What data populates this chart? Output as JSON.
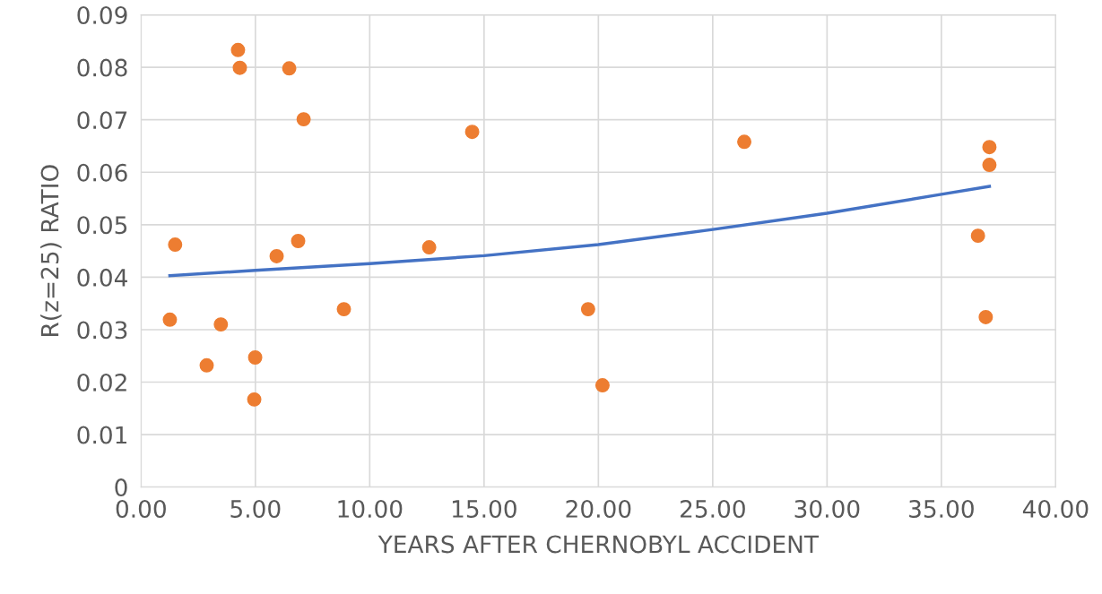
{
  "chart_data": {
    "type": "scatter",
    "xlabel": "YEARS AFTER CHERNOBYL ACCIDENT",
    "ylabel": "R(z=25) RATIO",
    "xlim": [
      0,
      40
    ],
    "ylim": [
      0,
      0.09
    ],
    "xticks": [
      {
        "value": 0,
        "label": "0.00"
      },
      {
        "value": 5,
        "label": "5.00"
      },
      {
        "value": 10,
        "label": "10.00"
      },
      {
        "value": 15,
        "label": "15.00"
      },
      {
        "value": 20,
        "label": "20.00"
      },
      {
        "value": 25,
        "label": "25.00"
      },
      {
        "value": 30,
        "label": "30.00"
      },
      {
        "value": 35,
        "label": "35.00"
      },
      {
        "value": 40,
        "label": "40.00"
      }
    ],
    "yticks": [
      0,
      0.01,
      0.02,
      0.03,
      0.04,
      0.05,
      0.06,
      0.07,
      0.08,
      0.09
    ],
    "grid": true,
    "marker": "circle",
    "series": [
      {
        "color": "#ed7d31",
        "x": [
          1.26,
          1.49,
          2.87,
          3.49,
          4.24,
          4.32,
          4.95,
          4.99,
          5.93,
          6.48,
          6.87,
          7.11,
          8.87,
          12.6,
          14.48,
          19.55,
          20.18,
          26.38,
          36.6,
          36.94,
          37.1,
          37.1
        ],
        "values": [
          0.0319,
          0.0462,
          0.0232,
          0.031,
          0.0833,
          0.0799,
          0.0167,
          0.0247,
          0.044,
          0.0798,
          0.0469,
          0.0701,
          0.0339,
          0.0457,
          0.0677,
          0.0339,
          0.0194,
          0.0658,
          0.0479,
          0.0324,
          0.0648,
          0.0614
        ]
      },
      {
        "type": "line",
        "color": "#4472c4",
        "marker": "none",
        "line_style": "solid",
        "x": [
          1.26,
          5,
          10,
          15,
          20,
          25,
          30,
          35,
          37.1
        ],
        "values": [
          0.0403,
          0.0413,
          0.0426,
          0.0441,
          0.0462,
          0.0491,
          0.0522,
          0.0558,
          0.0573
        ]
      }
    ]
  }
}
